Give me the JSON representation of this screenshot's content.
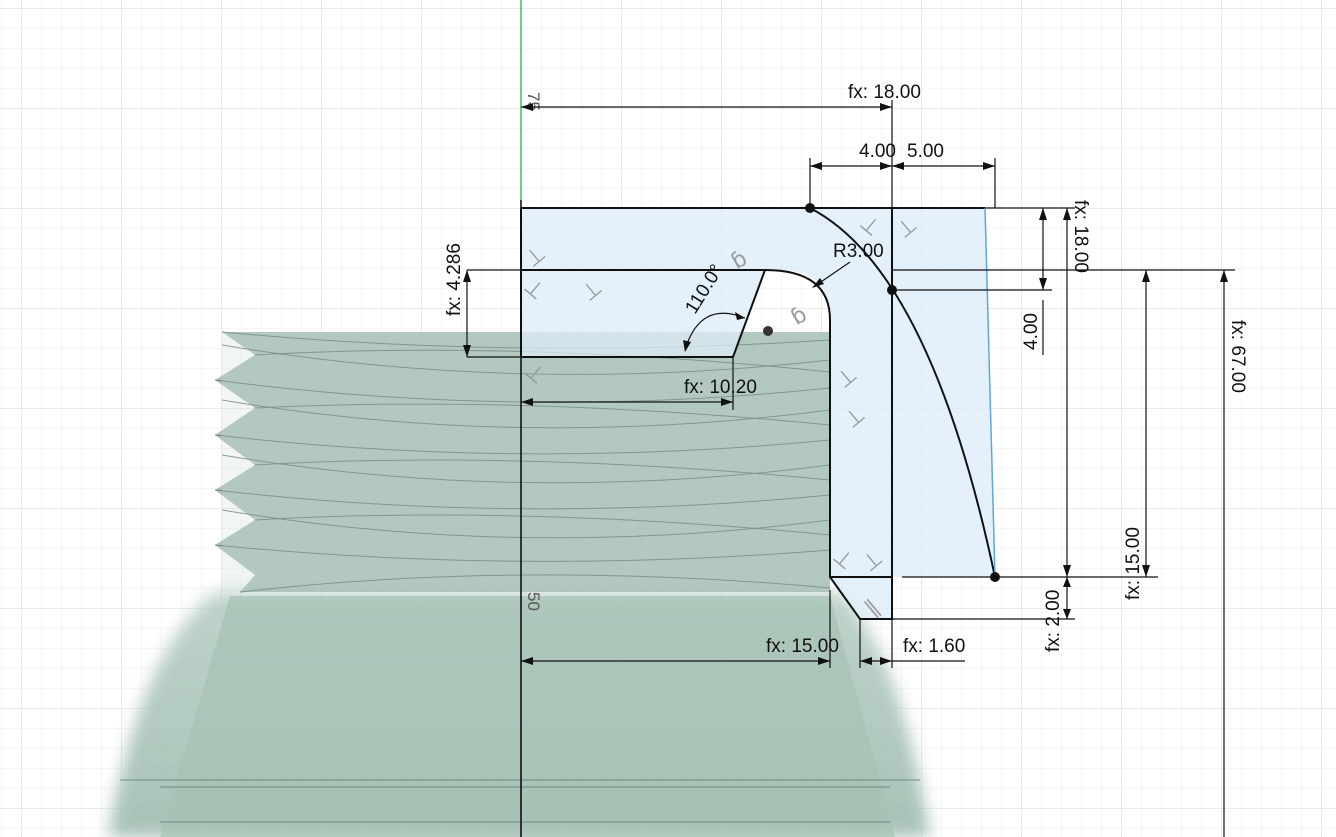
{
  "sketch": {
    "ruler_labels": {
      "top": "75",
      "bottom": "50"
    },
    "dimensions": {
      "width_total": "fx: 18.00",
      "offset_left": "4.00",
      "offset_right": "5.00",
      "radius": "R3.00",
      "angle": "110.0°",
      "inner_height": "fx: 4.286",
      "inner_width": "fx: 10.20",
      "vertical_4": "4.00",
      "height_right": "fx: 18.00",
      "height_mid": "fx: 15.00",
      "height_total": "fx: 67.00",
      "chamfer_height": "fx: 2.00",
      "base_width": "fx: 15.00",
      "wall_thickness": "fx: 1.60"
    },
    "constraint_icons": {
      "perpendicular": "⊥",
      "tangent": "ɓ",
      "parallel": "∥"
    },
    "colors": {
      "profile_fill": "#dcecf8",
      "thread_fill": "#8fa8a0",
      "bottle_fill": "#a9c4b8",
      "grid": "#e3e3e3",
      "axis": "#111111",
      "highlight": "#5aa8e0"
    }
  }
}
